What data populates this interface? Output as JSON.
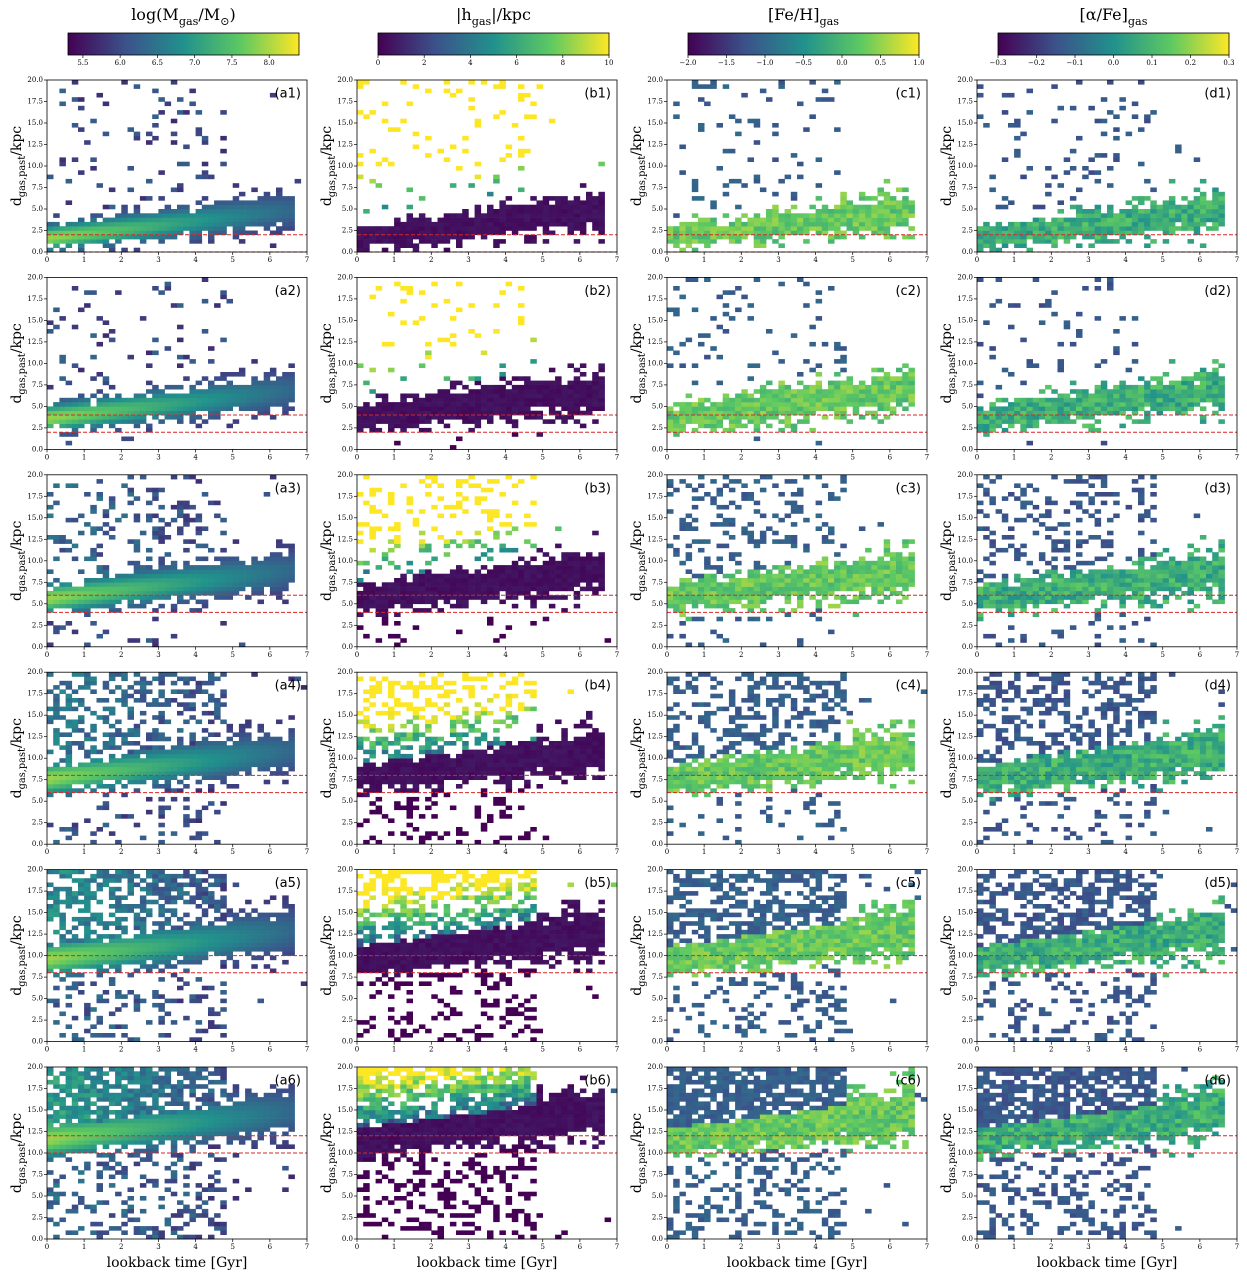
{
  "colorbars": [
    {
      "title_parts": [
        {
          "text": "log("
        },
        {
          "text": "M"
        },
        {
          "text": "gas",
          "sub": true
        },
        {
          "text": "/M"
        },
        {
          "text": "⊙",
          "sub": true
        },
        {
          "text": ")"
        }
      ],
      "lim": [
        5.3,
        8.4
      ],
      "ticks": [
        5.5,
        {
          "value": 6,
          "label": "6.0"
        },
        6.5,
        {
          "value": 7,
          "label": "7.0"
        },
        7.5,
        {
          "value": 8,
          "label": "8.0"
        }
      ]
    },
    {
      "title_parts": [
        {
          "text": "|h"
        },
        {
          "text": "gas",
          "sub": true
        },
        {
          "text": "|/kpc"
        }
      ],
      "lim": [
        0,
        10
      ],
      "ticks": [
        0,
        2,
        4,
        6,
        8,
        10
      ]
    },
    {
      "title_parts": [
        {
          "text": "[Fe/H]"
        },
        {
          "text": "gas",
          "sub": true
        }
      ],
      "lim": [
        -2,
        1
      ],
      "ticks": [
        {
          "value": -2,
          "label": "−2.0"
        },
        {
          "value": -1.5,
          "label": "−1.5"
        },
        {
          "value": -1,
          "label": "−1.0"
        },
        {
          "value": -0.5,
          "label": "−0.5"
        },
        {
          "value": 0,
          "label": "0.0"
        },
        {
          "value": 0.5,
          "label": "0.5"
        },
        {
          "value": 1,
          "label": "1.0"
        }
      ]
    },
    {
      "title_parts": [
        {
          "text": "[α/Fe]"
        },
        {
          "text": "gas",
          "sub": true
        }
      ],
      "lim": [
        -0.3,
        0.3
      ],
      "ticks": [
        {
          "value": -0.3,
          "label": "−0.3"
        },
        {
          "value": -0.2,
          "label": "−0.2"
        },
        {
          "value": -0.1,
          "label": "−0.1"
        },
        {
          "value": 0,
          "label": "0.0"
        },
        0.1,
        0.2,
        0.3
      ]
    }
  ],
  "xlabel": "lookback time [Gyr]",
  "ylabel_parts": [
    {
      "text": "d"
    },
    {
      "text": "gas,past",
      "sub": true
    },
    {
      "text": "/kpc"
    }
  ],
  "xlim": [
    0,
    7
  ],
  "xticks": [
    0,
    1,
    2,
    3,
    4,
    5,
    6,
    7
  ],
  "ylim": [
    0,
    20
  ],
  "yticks": [
    {
      "value": 0,
      "label": "0.0"
    },
    {
      "value": 2.5,
      "label": "2.5"
    },
    {
      "value": 5,
      "label": "5.0"
    },
    {
      "value": 7.5,
      "label": "7.5"
    },
    {
      "value": 10,
      "label": "10.0"
    },
    {
      "value": 12.5,
      "label": "12.5"
    },
    {
      "value": 15,
      "label": "15.0"
    },
    {
      "value": 17.5,
      "label": "17.5"
    },
    {
      "value": 20,
      "label": "20.0"
    }
  ],
  "ref_line_color": "#d62728",
  "rows": [
    {
      "ref_lines": [
        0,
        2
      ],
      "labels": [
        "(a1)",
        "(b1)",
        "(c1)",
        "(d1)"
      ]
    },
    {
      "ref_lines": [
        2,
        4
      ],
      "labels": [
        "(a2)",
        "(b2)",
        "(c2)",
        "(d2)"
      ]
    },
    {
      "ref_lines": [
        4,
        6
      ],
      "labels": [
        "(a3)",
        "(b3)",
        "(c3)",
        "(d3)"
      ]
    },
    {
      "ref_lines": [
        6,
        8
      ],
      "labels": [
        "(a4)",
        "(b4)",
        "(c4)",
        "(d4)"
      ]
    },
    {
      "ref_lines": [
        8,
        10
      ],
      "labels": [
        "(a5)",
        "(b5)",
        "(c5)",
        "(d5)"
      ]
    },
    {
      "ref_lines": [
        10,
        12
      ],
      "labels": [
        "(a6)",
        "(b6)",
        "(c6)",
        "(d6)"
      ]
    }
  ]
}
